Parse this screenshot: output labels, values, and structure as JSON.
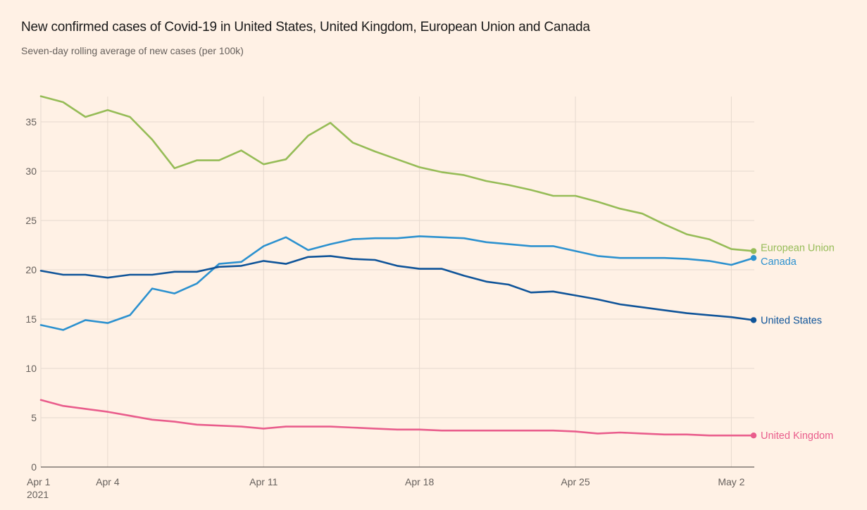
{
  "chart_data": {
    "type": "line",
    "title": "New confirmed cases of Covid-19 in United States, United Kingdom, European Union and Canada",
    "subtitle": "Seven-day rolling average of new cases (per 100k)",
    "xlabel": "",
    "ylabel": "",
    "x": [
      "Apr 1",
      "Apr 2",
      "Apr 3",
      "Apr 4",
      "Apr 5",
      "Apr 6",
      "Apr 7",
      "Apr 8",
      "Apr 9",
      "Apr 10",
      "Apr 11",
      "Apr 12",
      "Apr 13",
      "Apr 14",
      "Apr 15",
      "Apr 16",
      "Apr 17",
      "Apr 18",
      "Apr 19",
      "Apr 20",
      "Apr 21",
      "Apr 22",
      "Apr 23",
      "Apr 24",
      "Apr 25",
      "Apr 26",
      "Apr 27",
      "Apr 28",
      "Apr 29",
      "Apr 30",
      "May 1",
      "May 2",
      "May 3"
    ],
    "ylim": [
      0,
      37.6
    ],
    "yticks": [
      0,
      5,
      10,
      15,
      20,
      25,
      30,
      35
    ],
    "xticks": [
      {
        "index": 0,
        "label": "Apr 1",
        "sublabel": "2021"
      },
      {
        "index": 3,
        "label": "Apr 4"
      },
      {
        "index": 10,
        "label": "Apr 11"
      },
      {
        "index": 17,
        "label": "Apr 18"
      },
      {
        "index": 24,
        "label": "Apr 25"
      },
      {
        "index": 31,
        "label": "May 2"
      }
    ],
    "grid": true,
    "legend": "inline-end-labels",
    "series": [
      {
        "name": "European Union",
        "color": "#96bc57",
        "values": [
          37.6,
          37.0,
          35.5,
          36.2,
          35.5,
          33.2,
          30.3,
          31.1,
          31.1,
          32.1,
          30.7,
          31.2,
          33.6,
          34.9,
          32.9,
          32.0,
          31.2,
          30.4,
          29.9,
          29.6,
          29.0,
          28.6,
          28.1,
          27.5,
          27.5,
          26.9,
          26.2,
          25.7,
          24.6,
          23.6,
          23.1,
          22.1,
          21.9
        ]
      },
      {
        "name": "Canada",
        "color": "#2c91cf",
        "values": [
          14.4,
          13.9,
          14.9,
          14.6,
          15.4,
          18.1,
          17.6,
          18.6,
          20.6,
          20.8,
          22.4,
          23.3,
          22.0,
          22.6,
          23.1,
          23.2,
          23.2,
          23.4,
          23.3,
          23.2,
          22.8,
          22.6,
          22.4,
          22.4,
          21.9,
          21.4,
          21.2,
          21.2,
          21.2,
          21.1,
          20.9,
          20.5,
          21.2
        ]
      },
      {
        "name": "United States",
        "color": "#0f5499",
        "values": [
          19.9,
          19.5,
          19.5,
          19.2,
          19.5,
          19.5,
          19.8,
          19.8,
          20.3,
          20.4,
          20.9,
          20.6,
          21.3,
          21.4,
          21.1,
          21.0,
          20.4,
          20.1,
          20.1,
          19.4,
          18.8,
          18.5,
          17.7,
          17.8,
          17.4,
          17.0,
          16.5,
          16.2,
          15.9,
          15.6,
          15.4,
          15.2,
          14.9
        ]
      },
      {
        "name": "United Kingdom",
        "color": "#e95d8c",
        "values": [
          6.8,
          6.2,
          5.9,
          5.6,
          5.2,
          4.8,
          4.6,
          4.3,
          4.2,
          4.1,
          3.9,
          4.1,
          4.1,
          4.1,
          4.0,
          3.9,
          3.8,
          3.8,
          3.7,
          3.7,
          3.7,
          3.7,
          3.7,
          3.7,
          3.6,
          3.4,
          3.5,
          3.4,
          3.3,
          3.3,
          3.2,
          3.2,
          3.2
        ]
      }
    ]
  },
  "colors": {
    "background": "#fff1e5",
    "grid": "#e6d9ce",
    "axis": "#66605c"
  }
}
